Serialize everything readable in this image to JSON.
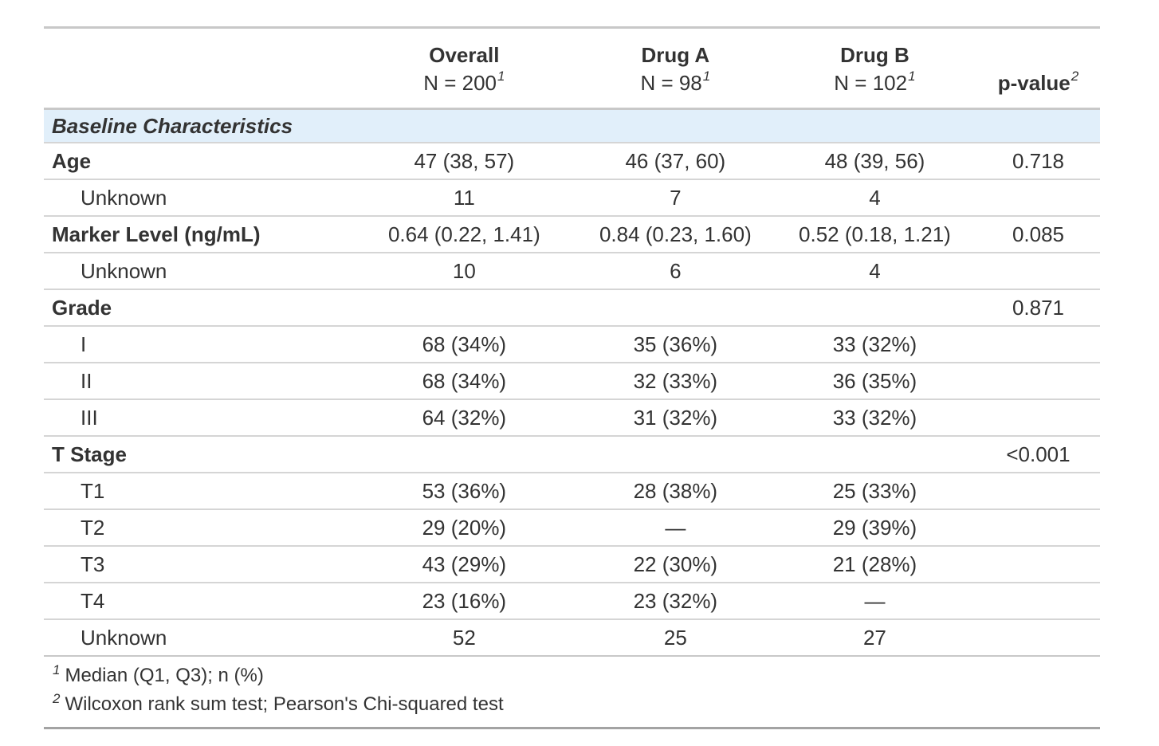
{
  "table": {
    "header": {
      "label_col": "",
      "columns": [
        {
          "label": "Overall",
          "sublabel": "N = 200",
          "footnote_ref": "1"
        },
        {
          "label": "Drug A",
          "sublabel": "N = 98",
          "footnote_ref": "1"
        },
        {
          "label": "Drug B",
          "sublabel": "N = 102",
          "footnote_ref": "1"
        },
        {
          "label": "p-value",
          "sublabel": "",
          "footnote_ref": "2"
        }
      ]
    },
    "section_header": "Baseline Characteristics",
    "rows": [
      {
        "label": "Age",
        "bold": true,
        "indent": false,
        "overall": "47 (38, 57)",
        "drug_a": "46 (37, 60)",
        "drug_b": "48 (39, 56)",
        "p_value": "0.718"
      },
      {
        "label": "Unknown",
        "bold": false,
        "indent": true,
        "overall": "11",
        "drug_a": "7",
        "drug_b": "4",
        "p_value": ""
      },
      {
        "label": "Marker Level (ng/mL)",
        "bold": true,
        "indent": false,
        "overall": "0.64 (0.22, 1.41)",
        "drug_a": "0.84 (0.23, 1.60)",
        "drug_b": "0.52 (0.18, 1.21)",
        "p_value": "0.085"
      },
      {
        "label": "Unknown",
        "bold": false,
        "indent": true,
        "overall": "10",
        "drug_a": "6",
        "drug_b": "4",
        "p_value": ""
      },
      {
        "label": "Grade",
        "bold": true,
        "indent": false,
        "overall": "",
        "drug_a": "",
        "drug_b": "",
        "p_value": "0.871"
      },
      {
        "label": "I",
        "bold": false,
        "indent": true,
        "overall": "68 (34%)",
        "drug_a": "35 (36%)",
        "drug_b": "33 (32%)",
        "p_value": ""
      },
      {
        "label": "II",
        "bold": false,
        "indent": true,
        "overall": "68 (34%)",
        "drug_a": "32 (33%)",
        "drug_b": "36 (35%)",
        "p_value": ""
      },
      {
        "label": "III",
        "bold": false,
        "indent": true,
        "overall": "64 (32%)",
        "drug_a": "31 (32%)",
        "drug_b": "33 (32%)",
        "p_value": ""
      },
      {
        "label": "T Stage",
        "bold": true,
        "indent": false,
        "overall": "",
        "drug_a": "",
        "drug_b": "",
        "p_value": "<0.001"
      },
      {
        "label": "T1",
        "bold": false,
        "indent": true,
        "overall": "53 (36%)",
        "drug_a": "28 (38%)",
        "drug_b": "25 (33%)",
        "p_value": ""
      },
      {
        "label": "T2",
        "bold": false,
        "indent": true,
        "overall": "29 (20%)",
        "drug_a": "—",
        "drug_b": "29 (39%)",
        "p_value": ""
      },
      {
        "label": "T3",
        "bold": false,
        "indent": true,
        "overall": "43 (29%)",
        "drug_a": "22 (30%)",
        "drug_b": "21 (28%)",
        "p_value": ""
      },
      {
        "label": "T4",
        "bold": false,
        "indent": true,
        "overall": "23 (16%)",
        "drug_a": "23 (32%)",
        "drug_b": "—",
        "p_value": ""
      },
      {
        "label": "Unknown",
        "bold": false,
        "indent": true,
        "overall": "52",
        "drug_a": "25",
        "drug_b": "27",
        "p_value": ""
      }
    ],
    "footnotes": [
      {
        "ref": "1",
        "text": "Median (Q1, Q3); n (%)"
      },
      {
        "ref": "2",
        "text": "Wilcoxon rank sum test; Pearson's Chi-squared test"
      }
    ],
    "colors": {
      "section_row_bg": "#E1EFFA",
      "text": "#333333",
      "border_light": "#D5D5D5",
      "border_medium": "#C8C8C8",
      "border_dark": "#A3A3A3"
    }
  }
}
